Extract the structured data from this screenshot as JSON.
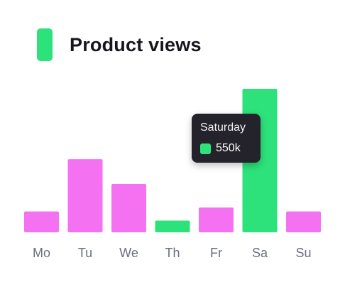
{
  "legend": {
    "label": "Product views",
    "color": "#2de27a"
  },
  "tooltip": {
    "title": "Saturday",
    "value": "550k",
    "color": "#2de27a"
  },
  "colors": {
    "default": "#f472f2",
    "highlight": "#2de27a",
    "tick_text": "#6b6f7e"
  },
  "chart_data": {
    "type": "bar",
    "categories": [
      "Mo",
      "Tu",
      "We",
      "Th",
      "Fr",
      "Sa",
      "Su"
    ],
    "series": [
      {
        "name": "Product views",
        "values": [
          80,
          280,
          185,
          45,
          95,
          550,
          80
        ]
      }
    ],
    "highlighted": [
      "Th",
      "Sa"
    ],
    "ylim": [
      0,
      550
    ],
    "grid": false,
    "legend_position": "top-left"
  }
}
